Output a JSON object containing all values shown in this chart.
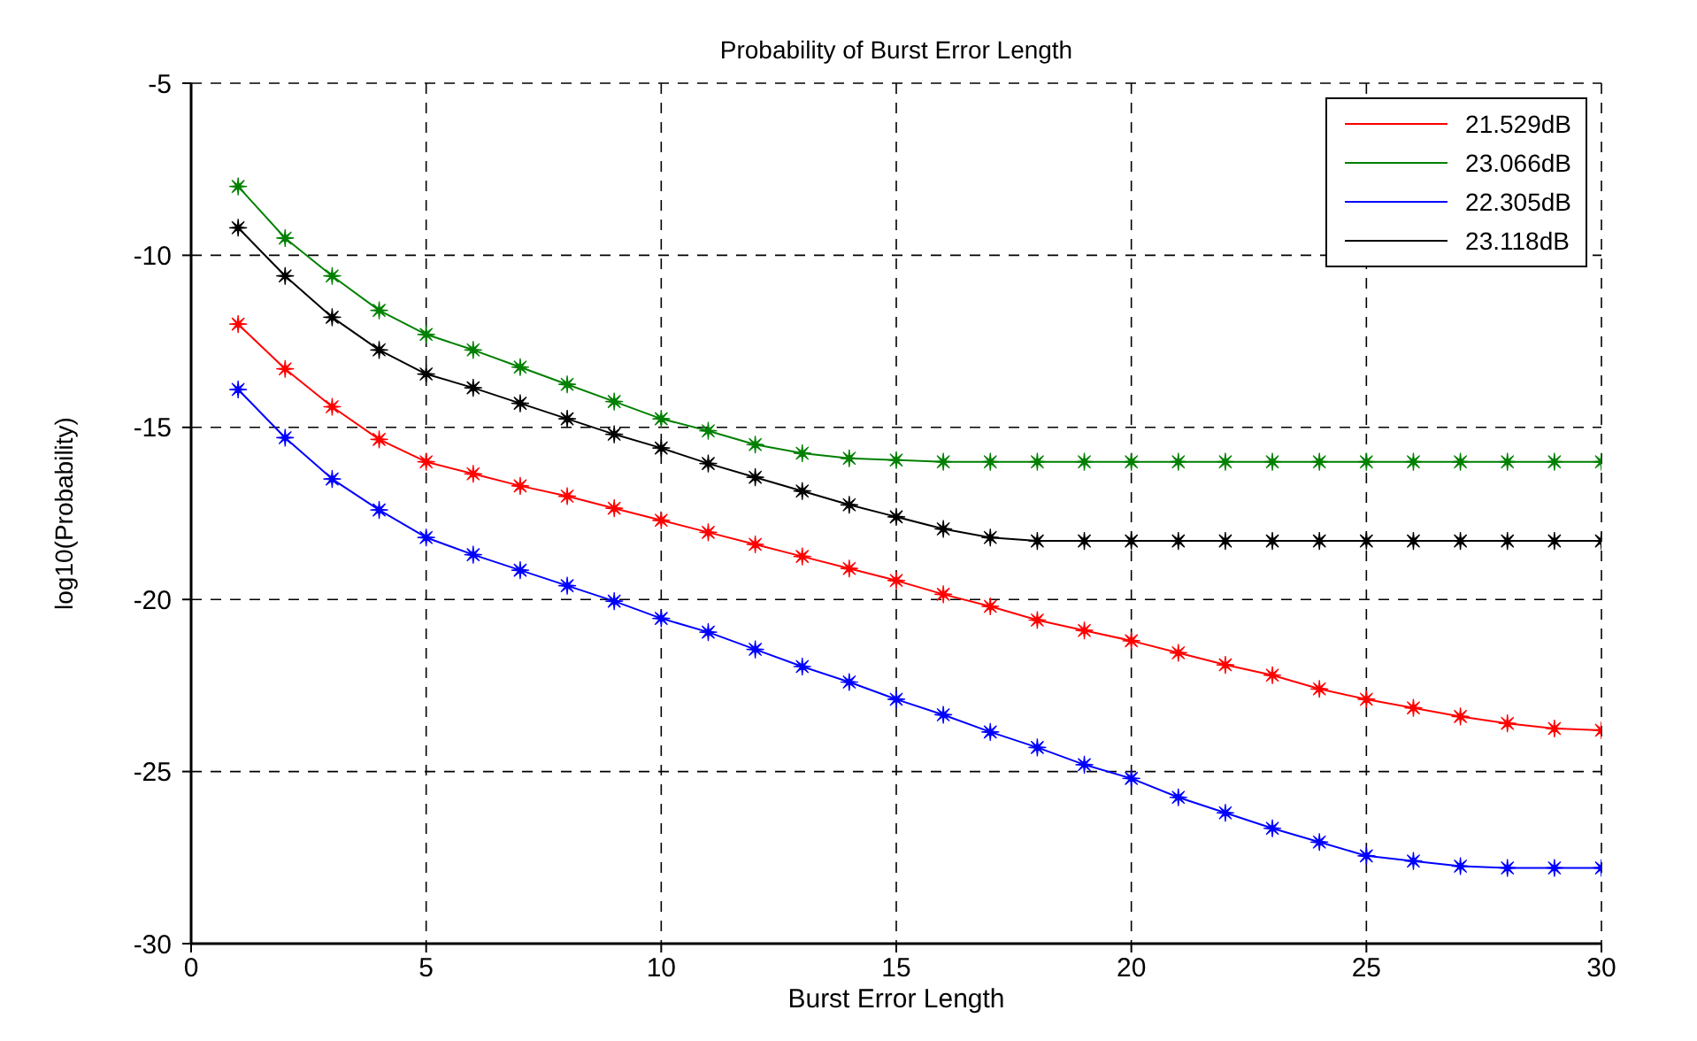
{
  "chart_data": {
    "type": "line",
    "title": "Probability of Burst Error Length",
    "xlabel": "Burst Error Length",
    "ylabel": "log10(Probability)",
    "x": [
      1,
      2,
      3,
      4,
      5,
      6,
      7,
      8,
      9,
      10,
      11,
      12,
      13,
      14,
      15,
      16,
      17,
      18,
      19,
      20,
      21,
      22,
      23,
      24,
      25,
      26,
      27,
      28,
      29,
      30
    ],
    "xlim": [
      0,
      30
    ],
    "xticks": [
      0,
      5,
      10,
      15,
      20,
      25,
      30
    ],
    "ylim": [
      -30,
      -5
    ],
    "yticks": [
      -30,
      -25,
      -20,
      -15,
      -10,
      -5
    ],
    "grid": true,
    "legend": "top right",
    "marker": "star",
    "line_style": "solid",
    "series": [
      {
        "name": "21.529dB",
        "color": "#ff0000",
        "values": [
          -12,
          -13.3,
          -14.4,
          -15.35,
          -16,
          -16.35,
          -16.7,
          -17,
          -17.35,
          -17.7,
          -18.05,
          -18.4,
          -18.75,
          -19.1,
          -19.45,
          -19.85,
          -20.2,
          -20.6,
          -20.9,
          -21.2,
          -21.55,
          -21.9,
          -22.2,
          -22.6,
          -22.9,
          -23.15,
          -23.4,
          -23.6,
          -23.75,
          -23.8
        ]
      },
      {
        "name": "23.066dB",
        "color": "#008000",
        "values": [
          -8,
          -9.5,
          -10.6,
          -11.6,
          -12.3,
          -12.75,
          -13.25,
          -13.75,
          -14.25,
          -14.75,
          -15.1,
          -15.5,
          -15.75,
          -15.9,
          -15.95,
          -16,
          -16,
          -16,
          -16,
          -16,
          -16,
          -16,
          -16,
          -16,
          -16,
          -16,
          -16,
          -16,
          -16,
          -16
        ]
      },
      {
        "name": "22.305dB",
        "color": "#0000ff",
        "values": [
          -13.9,
          -15.3,
          -16.5,
          -17.4,
          -18.2,
          -18.7,
          -19.15,
          -19.6,
          -20.05,
          -20.55,
          -20.95,
          -21.45,
          -21.95,
          -22.4,
          -22.9,
          -23.35,
          -23.85,
          -24.3,
          -24.8,
          -25.2,
          -25.75,
          -26.2,
          -26.65,
          -27.05,
          -27.45,
          -27.6,
          -27.75,
          -27.8,
          -27.8,
          -27.8
        ]
      },
      {
        "name": "23.118dB",
        "color": "#000000",
        "values": [
          -9.2,
          -10.6,
          -11.8,
          -12.75,
          -13.45,
          -13.85,
          -14.3,
          -14.75,
          -15.2,
          -15.6,
          -16.05,
          -16.45,
          -16.85,
          -17.25,
          -17.6,
          -17.95,
          -18.2,
          -18.3,
          -18.3,
          -18.3,
          -18.3,
          -18.3,
          -18.3,
          -18.3,
          -18.3,
          -18.3,
          -18.3,
          -18.3,
          -18.3,
          -18.3
        ]
      }
    ]
  }
}
